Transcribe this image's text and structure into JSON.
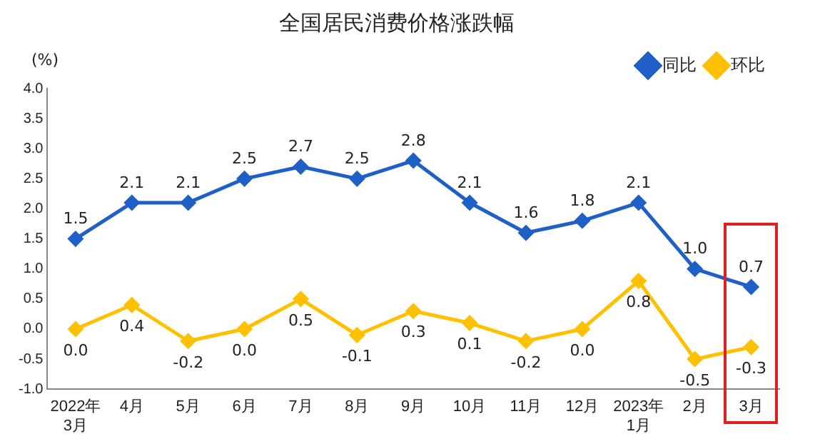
{
  "chart_data": {
    "type": "line",
    "title": "全国居民消费价格涨跌幅",
    "ylabel": "(%)",
    "categories": [
      "2022年\n3月",
      "4月",
      "5月",
      "6月",
      "7月",
      "8月",
      "9月",
      "10月",
      "11月",
      "12月",
      "2023年\n1月",
      "2月",
      "3月"
    ],
    "series": [
      {
        "name": "同比",
        "color": "#1f5fc8",
        "values": [
          1.5,
          2.1,
          2.1,
          2.5,
          2.7,
          2.5,
          2.8,
          2.1,
          1.6,
          1.8,
          2.1,
          1.0,
          0.7
        ],
        "value_labels": [
          "1.5",
          "2.1",
          "2.1",
          "2.5",
          "2.7",
          "2.5",
          "2.8",
          "2.1",
          "1.6",
          "1.8",
          "2.1",
          "1.0",
          "0.7"
        ]
      },
      {
        "name": "环比",
        "color": "#ffc000",
        "values": [
          0.0,
          0.4,
          -0.2,
          0.0,
          0.5,
          -0.1,
          0.3,
          0.1,
          -0.2,
          0.0,
          0.8,
          -0.5,
          -0.3
        ],
        "value_labels": [
          "0.0",
          "0.4",
          "-0.2",
          "0.0",
          "0.5",
          "-0.1",
          "0.3",
          "0.1",
          "-0.2",
          "0.0",
          "0.8",
          "-0.5",
          "-0.3"
        ]
      }
    ],
    "ylim": [
      -1.0,
      4.0
    ],
    "yticks": [
      {
        "value": -1,
        "label": "-1.0"
      },
      {
        "value": -0.5,
        "label": "-0.5"
      },
      {
        "value": 0,
        "label": "0.0"
      },
      {
        "value": 0.5,
        "label": "0.5"
      },
      {
        "value": 1,
        "label": "1.0"
      },
      {
        "value": 1.5,
        "label": "1.5"
      },
      {
        "value": 2,
        "label": "2.0"
      },
      {
        "value": 2.5,
        "label": "2.5"
      },
      {
        "value": 3,
        "label": "3.0"
      },
      {
        "value": 3.5,
        "label": "3.5"
      },
      {
        "value": 4,
        "label": "4.0"
      }
    ],
    "grid": false,
    "legend": "top",
    "marker": "diamond",
    "line_style": "solid"
  }
}
